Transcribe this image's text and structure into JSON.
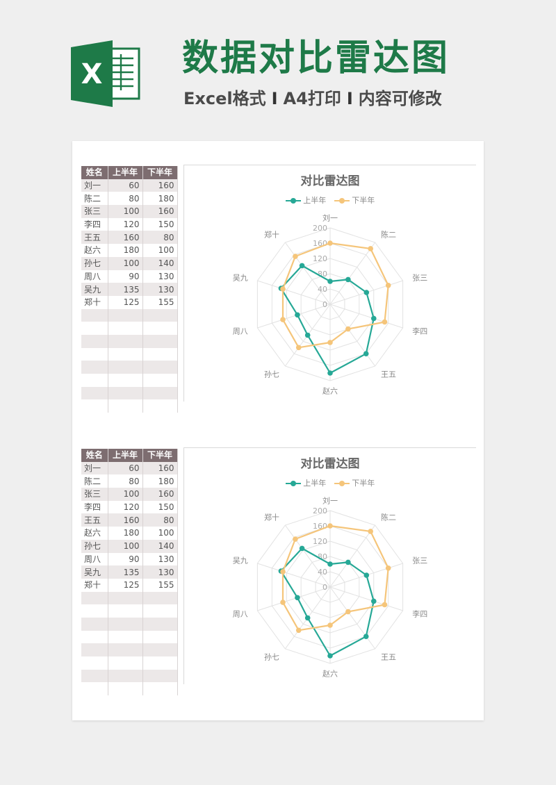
{
  "header": {
    "title": "数据对比雷达图",
    "subtitle_parts": [
      "Excel格式",
      "I",
      "A4打印",
      "I",
      "内容可修改"
    ],
    "logo_letter": "X",
    "logo_icon": "excel-logo-icon"
  },
  "colors": {
    "brand_green": "#1e7a48",
    "series_1": "#26a896",
    "series_2": "#f5c57a",
    "table_header": "#7d6d70"
  },
  "table": {
    "headers": [
      "姓名",
      "上半年",
      "下半年"
    ],
    "rows": [
      [
        "刘一",
        "60",
        "160"
      ],
      [
        "陈二",
        "80",
        "180"
      ],
      [
        "张三",
        "100",
        "160"
      ],
      [
        "李四",
        "120",
        "150"
      ],
      [
        "王五",
        "160",
        "80"
      ],
      [
        "赵六",
        "180",
        "100"
      ],
      [
        "孙七",
        "100",
        "140"
      ],
      [
        "周八",
        "90",
        "130"
      ],
      [
        "吴九",
        "135",
        "130"
      ],
      [
        "郑十",
        "125",
        "155"
      ]
    ]
  },
  "chart_data": [
    {
      "type": "radar",
      "title": "对比雷达图",
      "categories": [
        "刘一",
        "陈二",
        "张三",
        "李四",
        "王五",
        "赵六",
        "孙七",
        "周八",
        "吴九",
        "郑十"
      ],
      "series": [
        {
          "name": "上半年",
          "values": [
            60,
            80,
            100,
            120,
            160,
            180,
            100,
            90,
            135,
            125
          ],
          "color": "#26a896"
        },
        {
          "name": "下半年",
          "values": [
            160,
            180,
            160,
            150,
            80,
            100,
            140,
            130,
            130,
            155
          ],
          "color": "#f5c57a"
        }
      ],
      "r_ticks": [
        "0",
        "40",
        "80",
        "120",
        "160",
        "200"
      ],
      "rlim": [
        0,
        200
      ],
      "legend": "top",
      "grid": true
    },
    {
      "type": "radar",
      "title": "对比雷达图",
      "categories": [
        "刘一",
        "陈二",
        "张三",
        "李四",
        "王五",
        "赵六",
        "孙七",
        "周八",
        "吴九",
        "郑十"
      ],
      "series": [
        {
          "name": "上半年",
          "values": [
            60,
            80,
            100,
            120,
            160,
            180,
            100,
            90,
            135,
            125
          ],
          "color": "#26a896"
        },
        {
          "name": "下半年",
          "values": [
            160,
            180,
            160,
            150,
            80,
            100,
            140,
            130,
            130,
            155
          ],
          "color": "#f5c57a"
        }
      ],
      "r_ticks": [
        "0",
        "40",
        "80",
        "120",
        "160",
        "200"
      ],
      "rlim": [
        0,
        200
      ],
      "legend": "top",
      "grid": true
    }
  ]
}
